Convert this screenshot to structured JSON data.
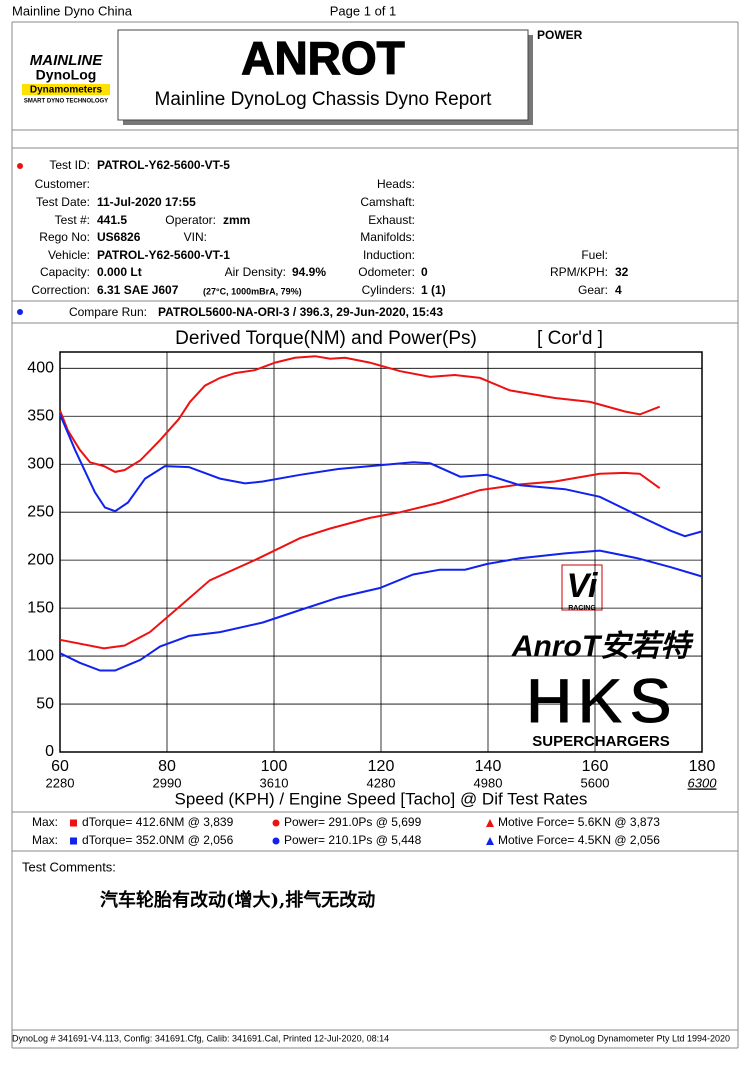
{
  "header": {
    "left": "Mainline Dyno China",
    "center": "Page 1 of 1",
    "title": "ANROT",
    "subtitle": "Mainline DynoLog Chassis Dyno Report",
    "mode": "POWER"
  },
  "logo": {
    "line1": "MAINLINE",
    "line2": "DynoLog",
    "line3": "Dynamometers",
    "tagline": "SMART DYNO TECHNOLOGY"
  },
  "fields": [
    {
      "label": "Test ID:",
      "value": "PATROL-Y62-5600-VT-5"
    },
    {
      "label": "Customer:"
    },
    {
      "label": "Test Date:",
      "value": "11-Jul-2020 17:55"
    },
    {
      "label": "Test #:",
      "value": "441.5"
    },
    {
      "label": "Operator:",
      "value": "zmm"
    },
    {
      "label": "Rego No:",
      "value": "US6826"
    },
    {
      "label": "VIN:"
    },
    {
      "label": "Vehicle:",
      "value": "PATROL-Y62-5600-VT-1"
    },
    {
      "label": "Capacity:",
      "value": "0.000 Lt"
    },
    {
      "label": "Air Density:",
      "value": "94.9%"
    },
    {
      "label": "Correction:",
      "value": "6.31 SAE J607",
      "note": "(27°C, 1000mBrA, 79%)"
    },
    {
      "label": "Heads:"
    },
    {
      "label": "Camshaft:"
    },
    {
      "label": "Exhaust:"
    },
    {
      "label": "Manifolds:"
    },
    {
      "label": "Induction:"
    },
    {
      "label": "Odometer:",
      "value": "0"
    },
    {
      "label": "Cylinders:",
      "value": "1 (1)"
    },
    {
      "label": "Fuel:"
    },
    {
      "label": "RPM/KPH:",
      "value": "32"
    },
    {
      "label": "Gear:",
      "value": "4"
    }
  ],
  "compare": {
    "label": "Compare Run:",
    "value": "PATROL5600-NA-ORI-3 / 396.3,   29-Jun-2020,    15:43"
  },
  "chart_data": {
    "type": "line",
    "title": "Derived Torque(NM) and Power(Ps)",
    "subtitle": "[ Cor'd ]",
    "x_label": "Speed (KPH) / Engine Speed [Tacho] @ Dif Test Rates",
    "xlim": [
      60,
      180
    ],
    "xticks": [
      60,
      80,
      100,
      120,
      140,
      160,
      180
    ],
    "rpm_labels": [
      2280,
      2990,
      3610,
      4280,
      4980,
      5600,
      6300
    ],
    "ylim": [
      0,
      417
    ],
    "yticks": [
      0,
      50,
      100,
      150,
      200,
      250,
      300,
      350,
      400
    ],
    "grid": true,
    "series": [
      {
        "name": "dTorque= 412.6NM @ 3,839",
        "color": "#ee1111",
        "x": [
          60,
          61.5,
          63.7,
          65.6,
          68.2,
          70.3,
          72.1,
          75,
          78.7,
          82.2,
          84.3,
          87.1,
          89.9,
          92.7,
          96.4,
          100.2,
          103.9,
          107.7,
          110.5,
          113.3,
          117.9,
          123.6,
          129.2,
          133.8,
          138.5,
          144.1,
          152.5,
          159.1,
          165.6,
          168.4,
          172.1
        ],
        "values": [
          356,
          335,
          315,
          302,
          298,
          292,
          294,
          304,
          325,
          347,
          365,
          382,
          390,
          395,
          398,
          406,
          411,
          412.6,
          410,
          411,
          406,
          397,
          391,
          393,
          390,
          377,
          369,
          365,
          355,
          352,
          360
        ]
      },
      {
        "name": "Power= 291.0Ps @ 5,699",
        "color": "#ee1111",
        "x": [
          60,
          68.2,
          72.1,
          76.8,
          82.2,
          88,
          96.4,
          104.9,
          110.5,
          117.9,
          123.6,
          131,
          138.5,
          146,
          152.5,
          160.9,
          165.6,
          168.4,
          172.1
        ],
        "values": [
          117,
          108,
          111,
          125,
          151,
          179,
          200,
          223,
          233,
          244,
          250,
          260,
          273,
          279,
          282,
          290,
          291,
          290,
          275
        ]
      },
      {
        "name": "dTorque= 352.0NM @ 2,056",
        "color": "#1122ee",
        "x": [
          60,
          62.8,
          66.5,
          68.4,
          70.3,
          72.7,
          75.9,
          79.6,
          84.1,
          89.9,
          94.6,
          97.9,
          104.9,
          112,
          119.8,
          126,
          129.2,
          134.8,
          139.8,
          146,
          154.4,
          160.9,
          167.9,
          174,
          176.8,
          180
        ],
        "values": [
          352,
          315,
          271,
          255,
          251,
          260,
          285,
          298,
          297,
          285,
          280,
          282,
          289,
          295,
          299,
          302,
          301,
          287,
          289,
          278,
          274,
          266,
          247,
          231,
          225,
          230
        ]
      },
      {
        "name": "Power= 210.1Ps @ 5,448",
        "color": "#1122ee",
        "x": [
          60,
          63.7,
          67.5,
          70.3,
          75,
          78.7,
          84.1,
          89.9,
          97.9,
          104.9,
          112,
          119.8,
          126,
          131,
          135.7,
          139.8,
          146,
          154.4,
          160.9,
          167.9,
          174,
          180
        ],
        "values": [
          103,
          93,
          85,
          85,
          96,
          110,
          121,
          125,
          135,
          148,
          161,
          171,
          185,
          190,
          190,
          196,
          202,
          207,
          210,
          202,
          193,
          183
        ]
      }
    ],
    "max_label": "Max:",
    "motive_force": [
      "Motive Force= 5.6KN @ 3,873",
      "Motive Force= 4.5KN @ 2,056"
    ]
  },
  "watermark": {
    "vi": "Vi",
    "racing": "RACING",
    "brand": "AnroT安若特",
    "hks": "HKS",
    "superchargers": "SUPERCHARGERS"
  },
  "comments": {
    "label": "Test Comments:",
    "text": "汽车轮胎有改动(增大),排气无改动"
  },
  "footer": {
    "left": "DynoLog # 341691-V4.113, Config: 341691.Cfg, Calib: 341691.Cal, Printed 12-Jul-2020, 08:14",
    "right": "© DynoLog Dynamometer Pty Ltd 1994-2020"
  }
}
